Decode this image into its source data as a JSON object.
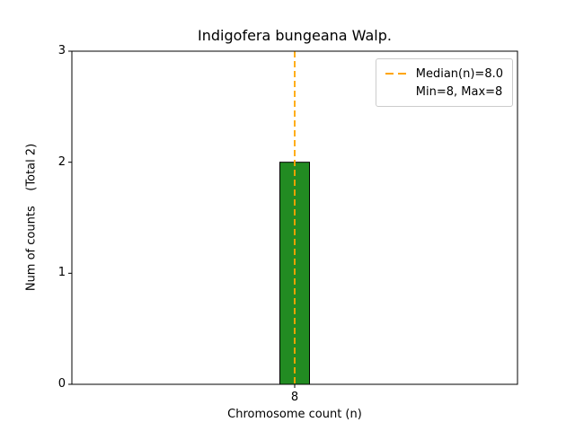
{
  "chart_data": {
    "type": "bar",
    "title": "Indigofera bungeana Walp.",
    "xlabel": "Chromosome count (n)",
    "ylabel": "Num of counts    (Total 2)",
    "categories": [
      8
    ],
    "values": [
      2
    ],
    "total_counts": 2,
    "ylim": [
      0,
      3
    ],
    "yticks": [
      0,
      1,
      2,
      3
    ],
    "xtick_labels": [
      "8"
    ],
    "bar_color": "#228B22",
    "bar_edge_color": "#000000",
    "median": {
      "value": 8.0,
      "line_color": "#FFA500",
      "line_style": "dashed"
    },
    "min": 8,
    "max": 8,
    "grid": false,
    "legend": {
      "position": "upper right",
      "entries": [
        {
          "sample": "dashed-line",
          "label": "Median(n)=8.0"
        },
        {
          "sample": "none",
          "label": "Min=8, Max=8"
        }
      ]
    }
  }
}
